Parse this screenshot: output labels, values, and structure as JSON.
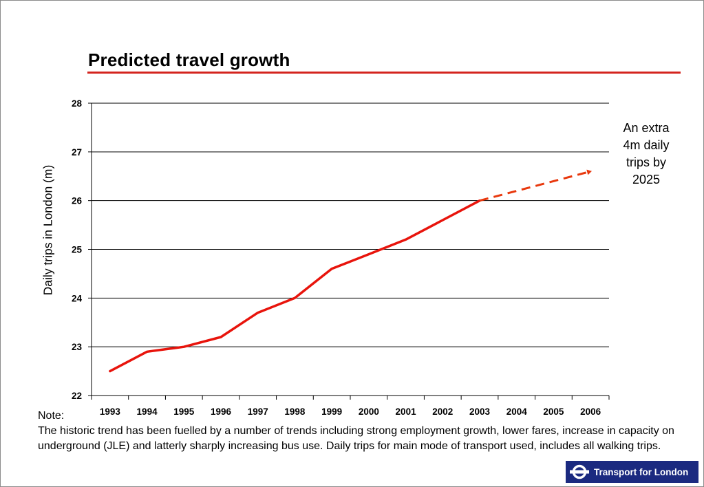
{
  "header": {
    "title": "Predicted travel growth"
  },
  "annotation": {
    "lines": [
      "An extra",
      "4m daily",
      "trips by",
      "2025"
    ]
  },
  "note": {
    "label": "Note:",
    "text": "The historic trend has been fuelled by a number of trends including strong employment growth, lower fares, increase in capacity on underground (JLE) and latterly sharply increasing bus use.  Daily trips for main mode of transport used, includes all walking trips."
  },
  "logo": {
    "text": "Transport for London",
    "icon": "roundel-icon"
  },
  "colors": {
    "accent": "#d4241e",
    "series": "#e8140c",
    "projection": "#e8380d",
    "logo_bg": "#1b2a80"
  },
  "chart_data": {
    "type": "line",
    "title": "Predicted travel growth",
    "xlabel": "",
    "ylabel": "Daily trips in London (m)",
    "categories": [
      "1993",
      "1994",
      "1995",
      "1996",
      "1997",
      "1998",
      "1999",
      "2000",
      "2001",
      "2002",
      "2003",
      "2004",
      "2005",
      "2006"
    ],
    "yticks": [
      "22",
      "23",
      "24",
      "25",
      "26",
      "27",
      "28"
    ],
    "ylim": [
      22,
      28
    ],
    "grid": true,
    "series": [
      {
        "style": "solid",
        "x": [
          1993,
          1994,
          1995,
          1996,
          1997,
          1998,
          1999,
          2000,
          2001,
          2002,
          2003
        ],
        "values": [
          22.5,
          22.9,
          23.0,
          23.2,
          23.7,
          24.0,
          24.6,
          24.9,
          25.2,
          25.6,
          26.0
        ]
      },
      {
        "style": "dashed-arrow",
        "x": [
          2003,
          2006
        ],
        "values": [
          26.0,
          26.6
        ]
      }
    ]
  }
}
